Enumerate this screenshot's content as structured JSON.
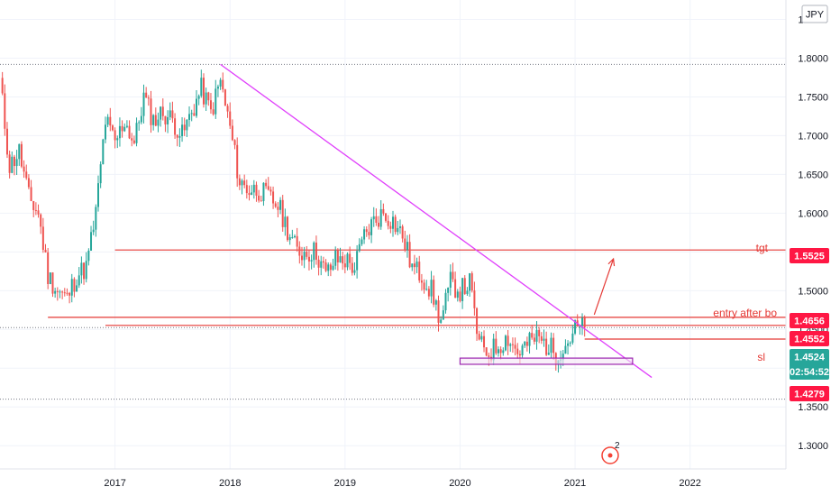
{
  "currency": "JPY",
  "colors": {
    "up": "#26a69a",
    "down": "#ef5350",
    "level": "#e53935",
    "trendline": "#e040fb",
    "grid": "#f0f3fa",
    "green_badge": "#26a69a",
    "red_badge": "#ff1744",
    "box": "#9c27b0",
    "box_fill": "#f3e5f5"
  },
  "price_badges": {
    "target": "1.5525",
    "entry": "1.4656",
    "upper_mark": "1.4552",
    "current": "1.4524",
    "countdown": "02:54:52",
    "low": "1.4279"
  },
  "annotations": {
    "target_label": "tgt",
    "entry_label": "entry after bo",
    "stop_label": "sl",
    "event_count": "2"
  },
  "chart_data": {
    "type": "candlestick",
    "y_ticks": [
      "1.8500",
      "1.8000",
      "1.7500",
      "1.7000",
      "1.6500",
      "1.6000",
      "1.5500",
      "1.5000",
      "1.4500",
      "1.4000",
      "1.3500",
      "1.3000"
    ],
    "x_ticks": [
      "2017",
      "2018",
      "2019",
      "2020",
      "2021",
      "2022"
    ],
    "ylim": [
      1.27,
      1.875
    ],
    "x_range": [
      "2016-01",
      "2022-11"
    ],
    "grid": true,
    "horizontal_levels": [
      {
        "name": "tgt",
        "value": 1.5525,
        "from": "2017-01",
        "to": "2022-11"
      },
      {
        "name": "entry after bo",
        "value": 1.4656,
        "from": "2016-06",
        "to": "2022-11"
      },
      {
        "name": "",
        "value": 1.4552,
        "from": "2016-12",
        "to": "2022-11"
      },
      {
        "name": "sl",
        "value": 1.4375,
        "from": "2021-02",
        "to": "2022-11"
      }
    ],
    "dotted_levels": [
      1.792,
      1.4524,
      1.36
    ],
    "trendline": {
      "from": {
        "x": "2017-12",
        "y": 1.792
      },
      "to": {
        "x": "2021-09",
        "y": 1.388
      }
    },
    "support_box": {
      "from": "2020-01",
      "to": "2021-07",
      "y_low": 1.405,
      "y_high": 1.413
    },
    "arrow": {
      "from": {
        "x": "2021-03",
        "y": 1.469
      },
      "to": {
        "x": "2021-05",
        "y": 1.541
      }
    },
    "series": [
      {
        "type": "candlestick",
        "x": [
          "2016-01",
          "2016-02",
          "2016-03",
          "2016-04",
          "2016-05",
          "2016-06",
          "2016-07",
          "2016-08",
          "2016-09",
          "2016-10",
          "2016-11",
          "2016-12",
          "2017-01",
          "2017-02",
          "2017-03",
          "2017-04",
          "2017-05",
          "2017-06",
          "2017-07",
          "2017-08",
          "2017-09",
          "2017-10",
          "2017-11",
          "2017-12",
          "2018-01",
          "2018-02",
          "2018-03",
          "2018-04",
          "2018-05",
          "2018-06",
          "2018-07",
          "2018-08",
          "2018-09",
          "2018-10",
          "2018-11",
          "2018-12",
          "2019-01",
          "2019-02",
          "2019-03",
          "2019-04",
          "2019-05",
          "2019-06",
          "2019-07",
          "2019-08",
          "2019-09",
          "2019-10",
          "2019-11",
          "2019-12",
          "2020-01",
          "2020-02",
          "2020-03",
          "2020-04",
          "2020-05",
          "2020-06",
          "2020-07",
          "2020-08",
          "2020-09",
          "2020-10",
          "2020-11",
          "2020-12",
          "2021-01",
          "2021-02"
        ],
        "close": [
          1.77,
          1.66,
          1.68,
          1.62,
          1.6,
          1.52,
          1.5,
          1.49,
          1.52,
          1.53,
          1.6,
          1.72,
          1.69,
          1.72,
          1.69,
          1.75,
          1.72,
          1.73,
          1.72,
          1.7,
          1.73,
          1.76,
          1.73,
          1.77,
          1.71,
          1.64,
          1.63,
          1.63,
          1.62,
          1.61,
          1.58,
          1.55,
          1.55,
          1.55,
          1.52,
          1.54,
          1.54,
          1.53,
          1.57,
          1.59,
          1.6,
          1.59,
          1.57,
          1.53,
          1.52,
          1.5,
          1.46,
          1.51,
          1.5,
          1.51,
          1.43,
          1.42,
          1.43,
          1.44,
          1.42,
          1.43,
          1.44,
          1.43,
          1.42,
          1.43,
          1.45,
          1.4524
        ]
      }
    ]
  }
}
